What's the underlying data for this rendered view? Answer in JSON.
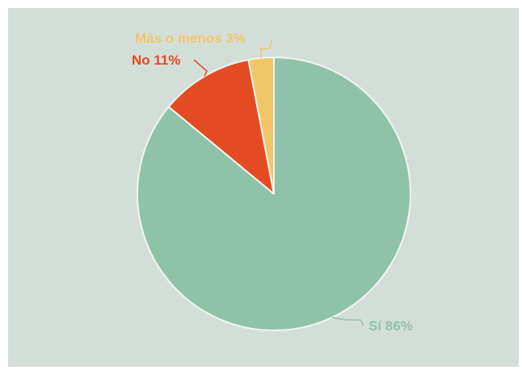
{
  "chart_data": {
    "type": "pie",
    "title": "",
    "slices": [
      {
        "label": "Sí 86%",
        "value": 86,
        "color": "#8fc3a9"
      },
      {
        "label": "No 11%",
        "value": 11,
        "color": "#e44b22"
      },
      {
        "label": "Más o menos 3%",
        "value": 3,
        "color": "#f0c768"
      }
    ]
  },
  "colors": {
    "background": "#d4ded9",
    "slice_border": "#f2f5f1"
  }
}
